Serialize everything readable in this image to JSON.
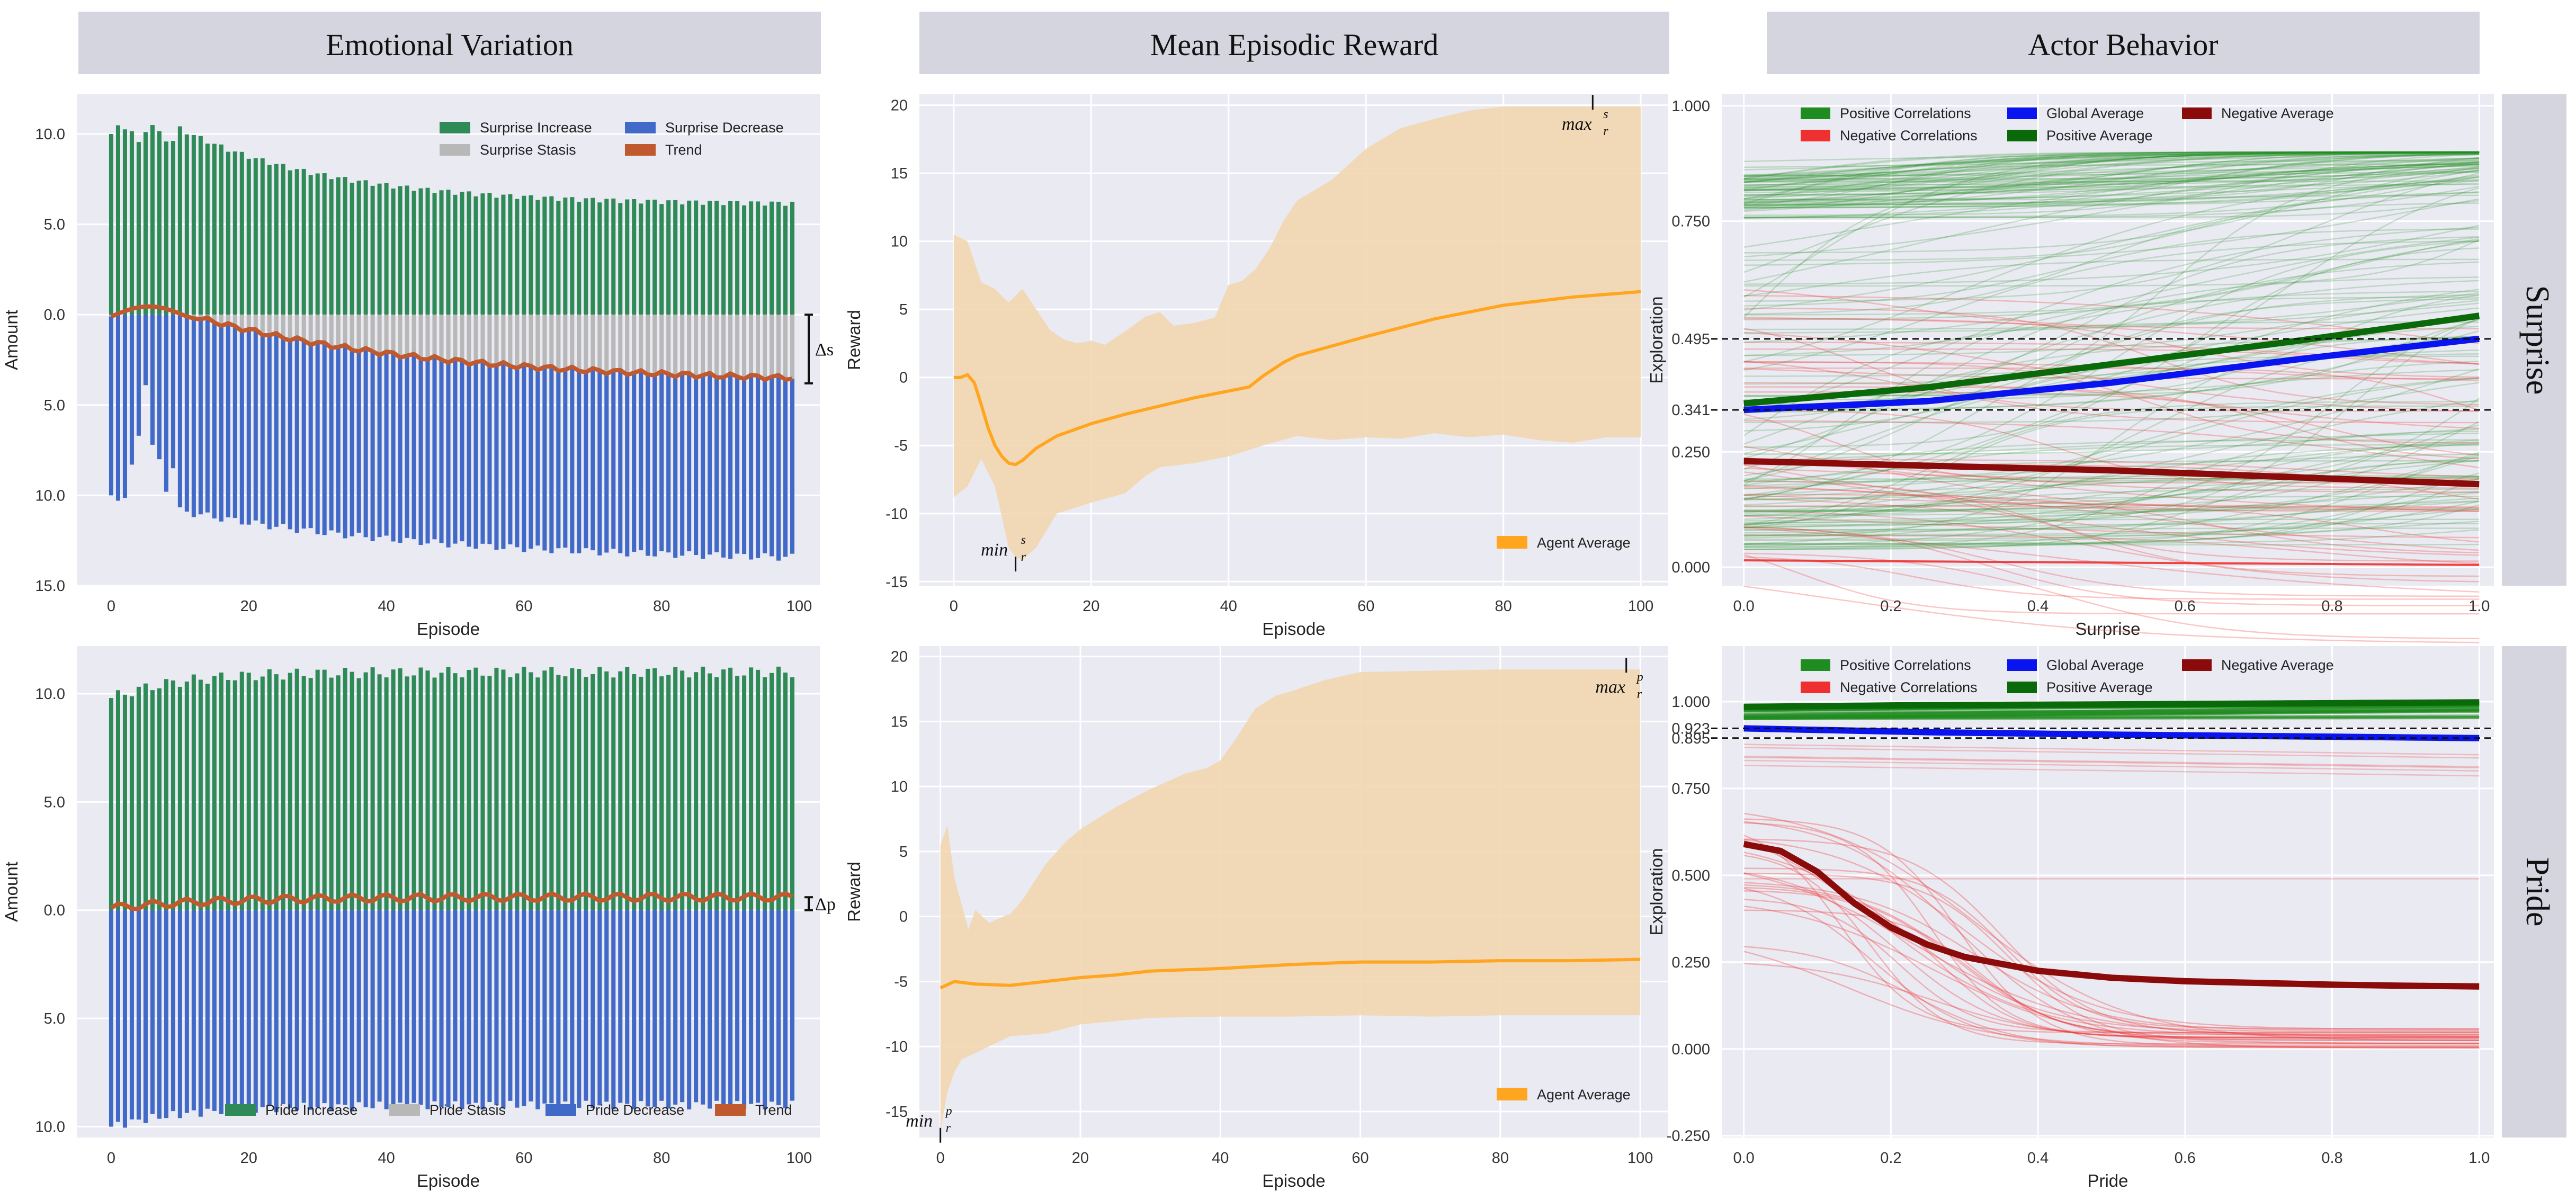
{
  "column_titles": [
    "Emotional Variation",
    "Mean Episodic Reward",
    "Actor Behavior"
  ],
  "row_labels": [
    "Surprise",
    "Pride"
  ],
  "colors": {
    "increase": "#2e8b57",
    "stasis": "#b8b8b8",
    "decrease": "#4169c8",
    "trend": "#c05a2e",
    "band": "#f2d7b0",
    "agent_line": "#ffa51f",
    "pos_corr": "#1e8c1e",
    "neg_corr": "#f03030",
    "global_avg": "#0a14f0",
    "pos_avg": "#0a6a0a",
    "neg_avg": "#8b0a0a",
    "panel_bg": "#eaeaf2",
    "header_bg": "#d5d5e0"
  },
  "chart_data": [
    {
      "id": "ev_surprise",
      "type": "bar",
      "title": "Emotional Variation",
      "xlabel": "Episode",
      "ylabel": "Amount",
      "xlim": [
        -5,
        103
      ],
      "ylim": [
        -15,
        12.2
      ],
      "xticks": [
        0,
        20,
        40,
        60,
        80,
        100
      ],
      "yticks": [
        {
          "value": 10,
          "label": "10.0"
        },
        {
          "value": 5,
          "label": "5.0"
        },
        {
          "value": 0,
          "label": "0.0"
        },
        {
          "value": -5,
          "label": "5.0"
        },
        {
          "value": -10,
          "label": "10.0"
        },
        {
          "value": -15,
          "label": "15.0"
        }
      ],
      "episodes": 100,
      "increase": {
        "start": 10.0,
        "peak": 10.5,
        "end": 6.1
      },
      "decrease": {
        "start": -10.0,
        "early_dip_episodes": [
          3,
          4,
          5,
          6,
          7,
          8,
          9
        ],
        "dip_values": [
          -8.3,
          -6.7,
          -3.9,
          -7.2,
          -8.0,
          -9.8,
          -8.5
        ],
        "end": -13.7
      },
      "trend": {
        "start": -0.1,
        "peak": 0.6,
        "end": -3.8
      },
      "bracket_label": "Δs",
      "legend": [
        "Surprise Increase",
        "Surprise Decrease",
        "Surprise Stasis",
        "Trend"
      ]
    },
    {
      "id": "ev_pride",
      "type": "bar",
      "xlabel": "Episode",
      "ylabel": "Amount",
      "xlim": [
        -5,
        103
      ],
      "ylim": [
        -10.5,
        12.2
      ],
      "xticks": [
        0,
        20,
        40,
        60,
        80,
        100
      ],
      "yticks": [
        {
          "value": 10,
          "label": "10.0"
        },
        {
          "value": 5,
          "label": "5.0"
        },
        {
          "value": 0,
          "label": "0.0"
        },
        {
          "value": -5,
          "label": "5.0"
        },
        {
          "value": -10,
          "label": "10.0"
        }
      ],
      "episodes": 100,
      "increase": {
        "start": 9.8,
        "end": 11.0
      },
      "decrease": {
        "start": -10.0,
        "end": -9.0
      },
      "trend": {
        "start": 0.1,
        "end": 0.6
      },
      "bracket_label": "Δp",
      "legend": [
        "Pride Increase",
        "Pride Stasis",
        "Pride Decrease",
        "Trend"
      ]
    },
    {
      "id": "mer_surprise",
      "type": "area",
      "title": "Mean Episodic Reward",
      "xlabel": "Episode",
      "ylabel": "Reward",
      "xlim": [
        -5,
        104
      ],
      "ylim": [
        -15.3,
        20.8
      ],
      "xticks": [
        0,
        20,
        40,
        60,
        80,
        100
      ],
      "yticks": [
        20,
        15,
        10,
        5,
        0,
        -5,
        -10,
        -15
      ],
      "mean": {
        "x": [
          0,
          1,
          2,
          3,
          4,
          5,
          6,
          7,
          8,
          9,
          10,
          12,
          15,
          20,
          25,
          30,
          35,
          40,
          43,
          45,
          48,
          50,
          55,
          60,
          70,
          80,
          90,
          100
        ],
        "y": [
          0,
          0,
          0.2,
          -0.4,
          -2.0,
          -3.7,
          -5.0,
          -5.8,
          -6.3,
          -6.4,
          -6.1,
          -5.2,
          -4.3,
          -3.4,
          -2.7,
          -2.1,
          -1.5,
          -1.0,
          -0.7,
          0.1,
          1.1,
          1.6,
          2.3,
          3.0,
          4.3,
          5.3,
          5.9,
          6.3
        ]
      },
      "band_upper": {
        "x": [
          0,
          2,
          4,
          6,
          8,
          10,
          12,
          14,
          16,
          18,
          20,
          22,
          25,
          28,
          30,
          32,
          35,
          38,
          40,
          42,
          44,
          46,
          48,
          50,
          55,
          60,
          65,
          70,
          75,
          80,
          85,
          90,
          95,
          100
        ],
        "y": [
          10.5,
          10.0,
          7.0,
          6.5,
          5.5,
          6.5,
          5.0,
          3.5,
          2.8,
          2.5,
          2.7,
          2.4,
          3.4,
          4.5,
          4.8,
          3.8,
          4.0,
          4.4,
          6.8,
          7.1,
          8.0,
          9.5,
          11.5,
          13.0,
          14.5,
          16.8,
          18.3,
          19.0,
          19.6,
          19.9,
          19.9,
          19.9,
          19.9,
          19.9
        ]
      },
      "band_lower": {
        "x": [
          0,
          2,
          4,
          6,
          8,
          9,
          10,
          12,
          15,
          20,
          25,
          28,
          30,
          35,
          40,
          45,
          50,
          55,
          60,
          65,
          70,
          75,
          80,
          85,
          90,
          95,
          100
        ],
        "y": [
          -8.8,
          -8.0,
          -6.0,
          -8.0,
          -12.5,
          -13.2,
          -13.4,
          -12.5,
          -10.0,
          -9.2,
          -8.5,
          -7.2,
          -6.6,
          -6.3,
          -5.8,
          -5.0,
          -4.3,
          -4.6,
          -4.4,
          -4.5,
          -4.1,
          -4.4,
          -4.2,
          -4.6,
          -4.8,
          -4.4,
          -4.4
        ]
      },
      "annotations": [
        {
          "text": "min",
          "sub": "r",
          "sup": "s",
          "x": 9,
          "y": -13.4
        },
        {
          "text": "max",
          "sub": "r",
          "sup": "s",
          "x": 93,
          "y": 19.9
        }
      ],
      "legend": [
        "Agent Average"
      ]
    },
    {
      "id": "mer_pride",
      "type": "area",
      "xlabel": "Episode",
      "ylabel": "Reward",
      "xlim": [
        -3,
        104
      ],
      "ylim": [
        -17,
        20.8
      ],
      "xticks": [
        0,
        20,
        40,
        60,
        80,
        100
      ],
      "yticks": [
        20,
        15,
        10,
        5,
        0,
        -5,
        -10,
        -15
      ],
      "mean": {
        "x": [
          0,
          2,
          5,
          10,
          15,
          20,
          25,
          30,
          40,
          50,
          60,
          70,
          80,
          90,
          100
        ],
        "y": [
          -5.5,
          -5.0,
          -5.2,
          -5.3,
          -5.0,
          -4.7,
          -4.5,
          -4.2,
          -4.0,
          -3.7,
          -3.5,
          -3.5,
          -3.4,
          -3.4,
          -3.3
        ]
      },
      "band_upper": {
        "x": [
          0,
          1,
          2,
          3,
          4,
          5,
          7,
          9,
          10,
          11,
          12,
          15,
          18,
          20,
          25,
          30,
          35,
          38,
          40,
          42,
          45,
          48,
          50,
          55,
          60,
          70,
          80,
          90,
          100
        ],
        "y": [
          5.5,
          7.0,
          3.0,
          1.0,
          -1.0,
          0.5,
          -0.5,
          0.0,
          0.2,
          0.8,
          1.5,
          4.0,
          5.8,
          6.7,
          8.4,
          9.8,
          11.0,
          11.4,
          12.0,
          13.5,
          16.0,
          17.0,
          17.3,
          18.2,
          18.8,
          18.9,
          19.0,
          19.0,
          19.0
        ]
      },
      "band_lower": {
        "x": [
          0,
          1,
          2,
          3,
          5,
          10,
          15,
          20,
          30,
          40,
          50,
          60,
          70,
          80,
          90,
          100
        ],
        "y": [
          -16.5,
          -13.5,
          -12.0,
          -11.0,
          -10.5,
          -9.2,
          -9.0,
          -8.3,
          -7.8,
          -7.7,
          -7.7,
          -7.6,
          -7.7,
          -7.6,
          -7.6,
          -7.6
        ]
      },
      "annotations": [
        {
          "text": "min",
          "sub": "r",
          "sup": "p",
          "x": 0,
          "y": -16.5
        },
        {
          "text": "max",
          "sub": "r",
          "sup": "p",
          "x": 98,
          "y": 19.0
        }
      ],
      "legend": [
        "Agent Average"
      ]
    },
    {
      "id": "ab_surprise",
      "type": "line",
      "title": "Actor Behavior",
      "xlabel": "Surprise",
      "ylabel": "Exploration",
      "xlim": [
        -0.03,
        1.02
      ],
      "ylim": [
        -0.04,
        1.025
      ],
      "xticks": [
        {
          "value": 0,
          "label": "0.0"
        },
        {
          "value": 0.2,
          "label": "0.2"
        },
        {
          "value": 0.4,
          "label": "0.4"
        },
        {
          "value": 0.6,
          "label": "0.6"
        },
        {
          "value": 0.8,
          "label": "0.8"
        },
        {
          "value": 1.0,
          "label": "1.0"
        }
      ],
      "yticks": [
        {
          "value": 0,
          "label": "0.000"
        },
        {
          "value": 0.25,
          "label": "0.250"
        },
        {
          "value": 0.341,
          "label": "0.341"
        },
        {
          "value": 0.495,
          "label": "0.495"
        },
        {
          "value": 0.75,
          "label": "0.750"
        },
        {
          "value": 1.0,
          "label": "1.000"
        }
      ],
      "hlines": [
        0.341,
        0.495
      ],
      "global_average": {
        "x": [
          0,
          0.25,
          0.5,
          0.75,
          1.0
        ],
        "y": [
          0.341,
          0.36,
          0.4,
          0.45,
          0.495
        ]
      },
      "positive_average": {
        "x": [
          0,
          0.25,
          0.5,
          0.75,
          1.0
        ],
        "y": [
          0.355,
          0.39,
          0.44,
          0.49,
          0.545
        ]
      },
      "negative_average": {
        "x": [
          0,
          0.25,
          0.5,
          0.75,
          1.0
        ],
        "y": [
          0.23,
          0.22,
          0.21,
          0.195,
          0.18
        ]
      },
      "positive_count": 180,
      "negative_count": 45,
      "legend": [
        "Positive Correlations",
        "Global Average",
        "Negative Average",
        "Negative Correlations",
        "Positive Average"
      ]
    },
    {
      "id": "ab_pride",
      "type": "line",
      "xlabel": "Pride",
      "ylabel": "Exploration",
      "xlim": [
        -0.03,
        1.02
      ],
      "ylim": [
        -0.255,
        1.16
      ],
      "xticks": [
        {
          "value": 0,
          "label": "0.0"
        },
        {
          "value": 0.2,
          "label": "0.2"
        },
        {
          "value": 0.4,
          "label": "0.4"
        },
        {
          "value": 0.6,
          "label": "0.6"
        },
        {
          "value": 0.8,
          "label": "0.8"
        },
        {
          "value": 1.0,
          "label": "1.0"
        }
      ],
      "yticks": [
        {
          "value": -0.25,
          "label": "-0.250"
        },
        {
          "value": 0,
          "label": "0.000"
        },
        {
          "value": 0.25,
          "label": "0.250"
        },
        {
          "value": 0.5,
          "label": "0.500"
        },
        {
          "value": 0.75,
          "label": "0.750"
        },
        {
          "value": 0.895,
          "label": "0.895"
        },
        {
          "value": 0.923,
          "label": "0.923"
        },
        {
          "value": 1.0,
          "label": "1.000"
        }
      ],
      "hlines": [
        0.895,
        0.923
      ],
      "global_average": {
        "x": [
          0,
          0.25,
          0.5,
          0.75,
          1.0
        ],
        "y": [
          0.923,
          0.912,
          0.905,
          0.9,
          0.895
        ]
      },
      "positive_average": {
        "x": [
          0,
          0.25,
          0.5,
          0.75,
          1.0
        ],
        "y": [
          0.985,
          0.99,
          0.992,
          0.995,
          0.998
        ]
      },
      "negative_average": {
        "x": [
          0,
          0.05,
          0.1,
          0.15,
          0.2,
          0.25,
          0.3,
          0.4,
          0.5,
          0.6,
          0.7,
          0.8,
          0.9,
          1.0
        ],
        "y": [
          0.59,
          0.57,
          0.51,
          0.42,
          0.35,
          0.3,
          0.265,
          0.225,
          0.205,
          0.195,
          0.19,
          0.185,
          0.182,
          0.18
        ]
      },
      "positive_count": 40,
      "negative_count": 25,
      "legend": [
        "Positive Correlations",
        "Global Average",
        "Negative Average",
        "Negative Correlations",
        "Positive Average"
      ]
    }
  ]
}
